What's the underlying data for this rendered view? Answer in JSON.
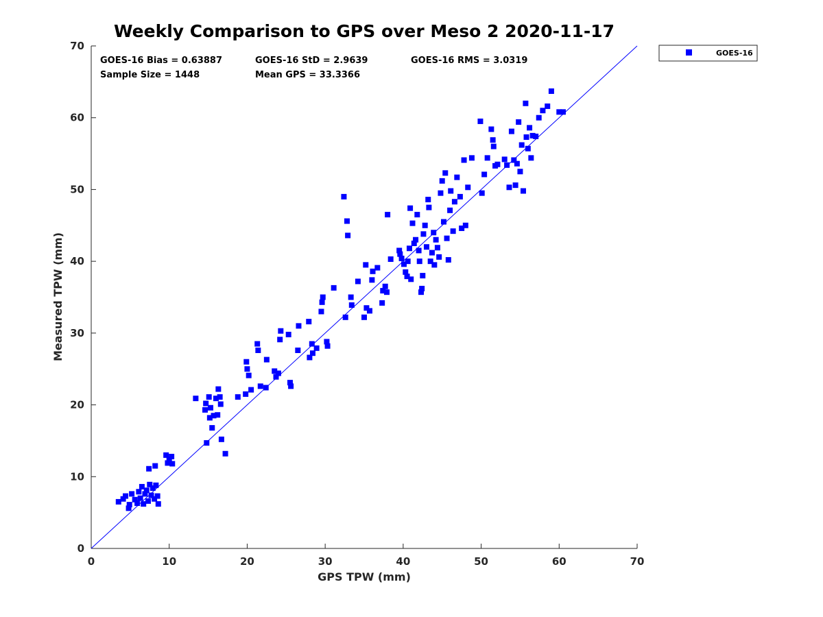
{
  "chart_data": {
    "type": "scatter",
    "title": "Weekly Comparison to GPS over Meso 2 2020-11-17",
    "xlabel": "GPS TPW (mm)",
    "ylabel": "Measured TPW (mm)",
    "xlim": [
      0,
      70
    ],
    "ylim": [
      0,
      70
    ],
    "xticks": [
      0,
      10,
      20,
      30,
      40,
      50,
      60,
      70
    ],
    "yticks": [
      0,
      10,
      20,
      30,
      40,
      50,
      60,
      70
    ],
    "grid": false,
    "legend_position": "outside-top-right",
    "stats": [
      "GOES-16 Bias = 0.63887",
      "GOES-16 StD = 2.9639",
      "GOES-16 RMS = 3.0319",
      "Sample Size = 1448",
      "Mean GPS = 33.3366"
    ],
    "reference_line": {
      "type": "one-to-one",
      "x": [
        0,
        70
      ],
      "y": [
        0,
        70
      ],
      "color": "#0000ff"
    },
    "series": [
      {
        "name": "GOES-16",
        "color": "#0000ff",
        "marker": "square",
        "points": [
          [
            3.5,
            6.5
          ],
          [
            4.1,
            6.9
          ],
          [
            4.4,
            7.3
          ],
          [
            4.8,
            5.6
          ],
          [
            4.9,
            6.1
          ],
          [
            5.2,
            7.6
          ],
          [
            5.6,
            6.8
          ],
          [
            5.9,
            6.3
          ],
          [
            6.1,
            7.9
          ],
          [
            6.3,
            7.0
          ],
          [
            6.5,
            8.6
          ],
          [
            6.7,
            6.2
          ],
          [
            6.9,
            7.6
          ],
          [
            7.1,
            8.1
          ],
          [
            7.3,
            6.6
          ],
          [
            7.4,
            11.1
          ],
          [
            7.5,
            8.9
          ],
          [
            7.7,
            7.4
          ],
          [
            7.9,
            8.4
          ],
          [
            8.1,
            6.9
          ],
          [
            8.2,
            11.5
          ],
          [
            8.3,
            8.8
          ],
          [
            8.5,
            7.3
          ],
          [
            8.6,
            6.2
          ],
          [
            9.6,
            13.0
          ],
          [
            9.8,
            11.9
          ],
          [
            10.0,
            12.4
          ],
          [
            10.3,
            12.8
          ],
          [
            10.4,
            11.8
          ],
          [
            13.4,
            20.9
          ],
          [
            14.6,
            19.3
          ],
          [
            14.7,
            20.2
          ],
          [
            14.8,
            14.7
          ],
          [
            15.1,
            21.1
          ],
          [
            15.2,
            18.2
          ],
          [
            15.3,
            19.6
          ],
          [
            15.5,
            16.8
          ],
          [
            15.7,
            18.5
          ],
          [
            16.0,
            20.9
          ],
          [
            16.2,
            18.6
          ],
          [
            16.3,
            22.2
          ],
          [
            16.5,
            21.1
          ],
          [
            16.6,
            20.1
          ],
          [
            16.7,
            15.2
          ],
          [
            17.2,
            13.2
          ],
          [
            18.8,
            21.1
          ],
          [
            19.8,
            21.5
          ],
          [
            19.9,
            26.0
          ],
          [
            20.0,
            25.0
          ],
          [
            20.2,
            24.1
          ],
          [
            20.5,
            22.1
          ],
          [
            21.3,
            28.5
          ],
          [
            21.4,
            27.6
          ],
          [
            21.7,
            22.6
          ],
          [
            22.4,
            22.4
          ],
          [
            22.5,
            26.3
          ],
          [
            23.5,
            24.7
          ],
          [
            23.7,
            23.9
          ],
          [
            24.0,
            24.4
          ],
          [
            24.2,
            29.1
          ],
          [
            24.3,
            30.3
          ],
          [
            25.3,
            29.8
          ],
          [
            25.5,
            23.1
          ],
          [
            25.6,
            22.6
          ],
          [
            26.5,
            27.6
          ],
          [
            26.6,
            31.0
          ],
          [
            27.9,
            31.6
          ],
          [
            28.0,
            26.6
          ],
          [
            28.3,
            28.5
          ],
          [
            28.4,
            27.2
          ],
          [
            28.9,
            27.9
          ],
          [
            29.5,
            33.0
          ],
          [
            29.6,
            34.3
          ],
          [
            29.7,
            35.0
          ],
          [
            30.2,
            28.8
          ],
          [
            30.3,
            28.2
          ],
          [
            31.1,
            36.3
          ],
          [
            32.4,
            49.0
          ],
          [
            32.6,
            32.2
          ],
          [
            32.8,
            45.6
          ],
          [
            32.9,
            43.6
          ],
          [
            33.3,
            35.0
          ],
          [
            33.4,
            33.9
          ],
          [
            34.2,
            37.2
          ],
          [
            35.0,
            32.2
          ],
          [
            35.2,
            39.5
          ],
          [
            35.3,
            33.5
          ],
          [
            35.7,
            33.1
          ],
          [
            36.0,
            37.4
          ],
          [
            36.1,
            38.6
          ],
          [
            36.7,
            39.1
          ],
          [
            37.3,
            34.2
          ],
          [
            37.4,
            35.9
          ],
          [
            37.7,
            36.5
          ],
          [
            37.9,
            35.7
          ],
          [
            38.0,
            46.5
          ],
          [
            38.4,
            40.3
          ],
          [
            39.5,
            41.5
          ],
          [
            39.6,
            41.0
          ],
          [
            39.8,
            40.4
          ],
          [
            40.1,
            39.6
          ],
          [
            40.3,
            38.5
          ],
          [
            40.5,
            37.9
          ],
          [
            40.6,
            40.0
          ],
          [
            40.8,
            41.8
          ],
          [
            40.9,
            47.4
          ],
          [
            41.0,
            37.5
          ],
          [
            41.2,
            45.3
          ],
          [
            41.4,
            42.5
          ],
          [
            41.6,
            43.0
          ],
          [
            41.8,
            46.5
          ],
          [
            42.0,
            41.5
          ],
          [
            42.1,
            40.0
          ],
          [
            42.3,
            35.7
          ],
          [
            42.4,
            36.2
          ],
          [
            42.5,
            38.0
          ],
          [
            42.6,
            43.8
          ],
          [
            42.8,
            45.0
          ],
          [
            43.0,
            42.0
          ],
          [
            43.2,
            48.6
          ],
          [
            43.3,
            47.5
          ],
          [
            43.5,
            40.0
          ],
          [
            43.7,
            41.2
          ],
          [
            43.9,
            44.0
          ],
          [
            44.0,
            39.5
          ],
          [
            44.2,
            43.0
          ],
          [
            44.4,
            41.9
          ],
          [
            44.6,
            40.6
          ],
          [
            44.8,
            49.5
          ],
          [
            45.0,
            51.2
          ],
          [
            45.2,
            45.5
          ],
          [
            45.4,
            52.3
          ],
          [
            45.6,
            43.2
          ],
          [
            45.8,
            40.2
          ],
          [
            46.0,
            47.1
          ],
          [
            46.1,
            49.8
          ],
          [
            46.4,
            44.2
          ],
          [
            46.6,
            48.3
          ],
          [
            46.9,
            51.7
          ],
          [
            47.3,
            49.0
          ],
          [
            47.5,
            44.6
          ],
          [
            47.8,
            54.1
          ],
          [
            48.0,
            45.0
          ],
          [
            48.3,
            50.3
          ],
          [
            48.8,
            54.4
          ],
          [
            49.9,
            59.5
          ],
          [
            50.1,
            49.5
          ],
          [
            50.4,
            52.1
          ],
          [
            50.8,
            54.4
          ],
          [
            51.3,
            58.4
          ],
          [
            51.5,
            56.9
          ],
          [
            51.6,
            56.0
          ],
          [
            51.8,
            53.3
          ],
          [
            52.1,
            53.5
          ],
          [
            53.0,
            54.2
          ],
          [
            53.3,
            53.4
          ],
          [
            53.6,
            50.3
          ],
          [
            53.9,
            58.1
          ],
          [
            54.2,
            54.1
          ],
          [
            54.4,
            50.6
          ],
          [
            54.6,
            53.6
          ],
          [
            54.8,
            59.4
          ],
          [
            55.0,
            52.5
          ],
          [
            55.2,
            56.2
          ],
          [
            55.4,
            49.8
          ],
          [
            55.7,
            62.0
          ],
          [
            55.8,
            57.3
          ],
          [
            56.0,
            55.7
          ],
          [
            56.2,
            58.6
          ],
          [
            56.4,
            54.4
          ],
          [
            56.6,
            57.5
          ],
          [
            57.0,
            57.4
          ],
          [
            57.4,
            60.0
          ],
          [
            57.9,
            61.0
          ],
          [
            58.5,
            61.6
          ],
          [
            59.0,
            63.7
          ],
          [
            60.0,
            60.8
          ],
          [
            60.5,
            60.8
          ]
        ]
      }
    ]
  }
}
